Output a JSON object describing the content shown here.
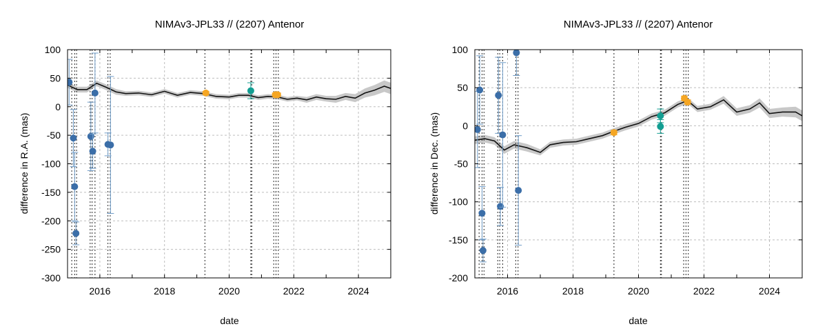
{
  "chart_data": [
    {
      "type": "scatter",
      "title": "NIMAv3-JPL33 // (2207) Antenor",
      "xlabel": "date",
      "ylabel": "difference in R.A. (mas)",
      "xlim": [
        2015.0,
        2025.0
      ],
      "ylim": [
        -300,
        100
      ],
      "xticks": [
        2016,
        2018,
        2020,
        2022,
        2024
      ],
      "xtick_labels": [
        "2016",
        "2018",
        "2020",
        "2022",
        "2024"
      ],
      "yticks": [
        -300,
        -250,
        -200,
        -150,
        -100,
        -50,
        0,
        50,
        100
      ],
      "ytick_labels": [
        "-300",
        "-250",
        "-200",
        "-150",
        "-100",
        "-50",
        "0",
        "50",
        "100"
      ],
      "grid": true,
      "colors": {
        "blue": "#3b6ea8",
        "teal": "#139e92",
        "orange": "#f5a623",
        "model": "#111111",
        "band": "#c8c8c8"
      },
      "vlines": [
        2015.13,
        2015.22,
        2015.28,
        2015.7,
        2015.76,
        2015.85,
        2016.25,
        2016.32,
        2019.25,
        2020.67,
        2020.7,
        2021.38,
        2021.45,
        2021.52
      ],
      "model_x": [
        2015.0,
        2015.3,
        2015.6,
        2015.9,
        2016.2,
        2016.5,
        2016.8,
        2017.2,
        2017.6,
        2018.0,
        2018.4,
        2018.8,
        2019.2,
        2019.6,
        2020.0,
        2020.3,
        2020.6,
        2020.9,
        2021.2,
        2021.5,
        2021.8,
        2022.1,
        2022.4,
        2022.7,
        2023.0,
        2023.3,
        2023.6,
        2023.9,
        2024.2,
        2024.5,
        2024.8,
        2025.0
      ],
      "model_y": [
        38,
        30,
        30,
        41,
        34,
        26,
        23,
        24,
        21,
        27,
        20,
        25,
        23,
        18,
        17,
        20,
        20,
        16,
        18,
        17,
        13,
        15,
        12,
        17,
        14,
        13,
        18,
        15,
        24,
        29,
        36,
        32
      ],
      "band_width": [
        5,
        5,
        5,
        5,
        5,
        5,
        4,
        4,
        4,
        4,
        4,
        4,
        4,
        4,
        4,
        4,
        4,
        4,
        4,
        4,
        4,
        4,
        5,
        5,
        5,
        6,
        6,
        7,
        8,
        9,
        10,
        10
      ],
      "series": [
        {
          "name": "blue",
          "color": "#3b6ea8",
          "x": [
            2015.05,
            2015.18,
            2015.22,
            2015.26,
            2015.72,
            2015.78,
            2015.85,
            2016.25,
            2016.33
          ],
          "y": [
            43,
            -55,
            -140,
            -222,
            -52,
            -78,
            24,
            -66,
            -67
          ],
          "err": [
            40,
            50,
            60,
            20,
            60,
            30,
            70,
            20,
            120
          ]
        },
        {
          "name": "teal",
          "color": "#139e92",
          "x": [
            2020.67
          ],
          "y": [
            28
          ],
          "err": [
            14
          ]
        },
        {
          "name": "orange",
          "color": "#f5a623",
          "x": [
            2019.28,
            2021.43,
            2021.5
          ],
          "y": [
            24,
            21,
            21
          ],
          "err": [
            3,
            3,
            3
          ]
        }
      ]
    },
    {
      "type": "scatter",
      "title": "NIMAv3-JPL33 // (2207) Antenor",
      "xlabel": "date",
      "ylabel": "difference in Dec. (mas)",
      "xlim": [
        2015.0,
        2025.0
      ],
      "ylim": [
        -200,
        100
      ],
      "xticks": [
        2016,
        2018,
        2020,
        2022,
        2024
      ],
      "xtick_labels": [
        "2016",
        "2018",
        "2020",
        "2022",
        "2024"
      ],
      "yticks": [
        -200,
        -150,
        -100,
        -50,
        0,
        50,
        100
      ],
      "ytick_labels": [
        "-200",
        "-150",
        "-100",
        "-50",
        "0",
        "50",
        "100"
      ],
      "grid": true,
      "colors": {
        "blue": "#3b6ea8",
        "teal": "#139e92",
        "orange": "#f5a623",
        "model": "#111111",
        "band": "#c8c8c8"
      },
      "vlines": [
        2015.13,
        2015.22,
        2015.28,
        2015.7,
        2015.76,
        2015.85,
        2016.25,
        2016.32,
        2019.25,
        2020.67,
        2020.7,
        2021.38,
        2021.45,
        2021.52
      ],
      "model_x": [
        2015.0,
        2015.3,
        2015.6,
        2015.9,
        2016.2,
        2016.6,
        2017.0,
        2017.3,
        2017.7,
        2018.1,
        2018.5,
        2018.9,
        2019.2,
        2019.6,
        2020.0,
        2020.4,
        2020.8,
        2021.2,
        2021.5,
        2021.8,
        2022.2,
        2022.6,
        2023.0,
        2023.4,
        2023.7,
        2024.0,
        2024.4,
        2024.8,
        2025.0
      ],
      "model_y": [
        -19,
        -17,
        -20,
        -32,
        -25,
        -29,
        -35,
        -25,
        -22,
        -21,
        -17,
        -13,
        -8,
        -2,
        3,
        12,
        17,
        28,
        33,
        22,
        25,
        34,
        18,
        22,
        30,
        16,
        18,
        18,
        13
      ],
      "band_width": [
        5,
        5,
        5,
        5,
        5,
        5,
        4,
        4,
        4,
        4,
        4,
        4,
        4,
        4,
        4,
        4,
        4,
        4,
        4,
        4,
        4,
        5,
        5,
        5,
        6,
        6,
        6,
        7,
        7
      ],
      "series": [
        {
          "name": "blue",
          "color": "#3b6ea8",
          "x": [
            2015.08,
            2015.15,
            2015.22,
            2015.25,
            2015.72,
            2015.78,
            2015.85,
            2016.27,
            2016.33
          ],
          "y": [
            -5,
            47,
            -115,
            -164,
            40,
            -106,
            -12,
            96,
            -85
          ],
          "err": [
            50,
            45,
            35,
            15,
            50,
            25,
            95,
            30,
            72
          ]
        },
        {
          "name": "teal",
          "color": "#139e92",
          "x": [
            2020.67,
            2020.67
          ],
          "y": [
            13,
            -1
          ],
          "err": [
            9,
            9
          ]
        },
        {
          "name": "orange",
          "color": "#f5a623",
          "x": [
            2019.25,
            2021.4,
            2021.5
          ],
          "y": [
            -9,
            36,
            31
          ],
          "err": [
            3,
            3,
            3
          ]
        }
      ]
    }
  ]
}
